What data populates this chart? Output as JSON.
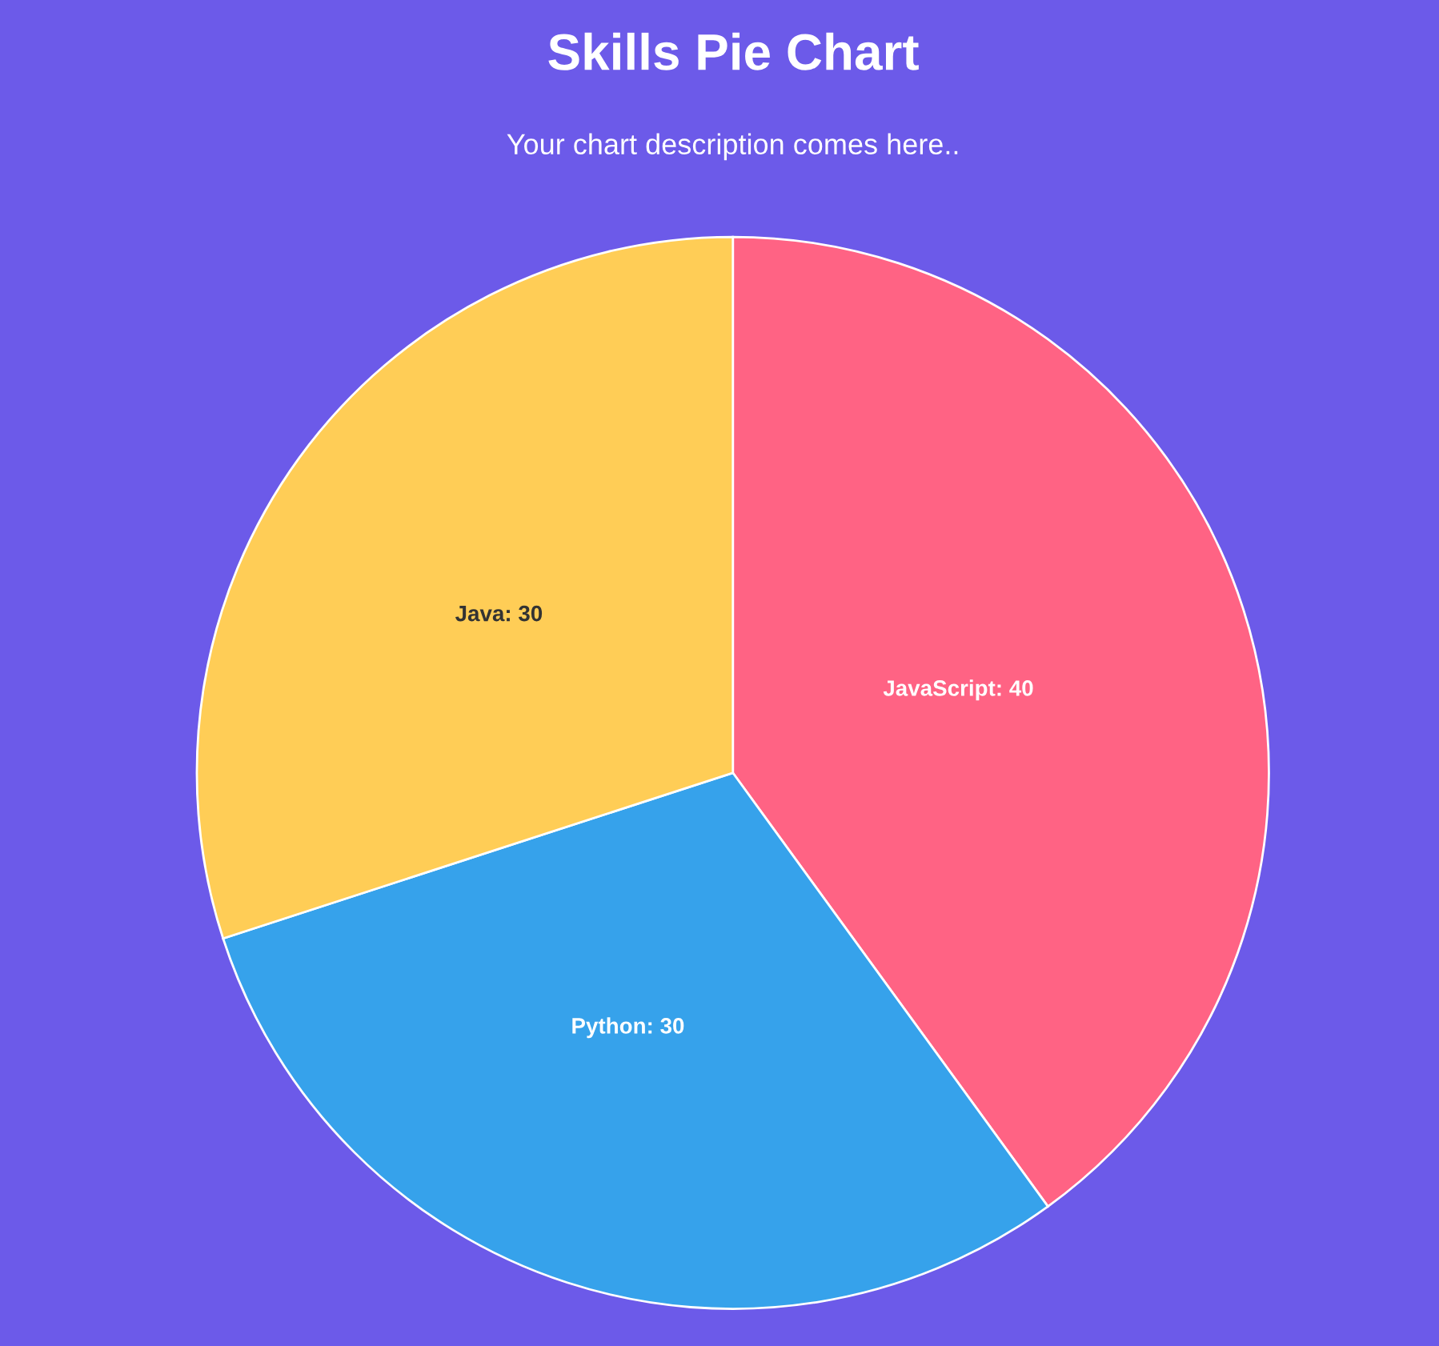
{
  "chart_data": {
    "type": "pie",
    "title": "Skills Pie Chart",
    "subtitle": "Your chart description comes here..",
    "categories": [
      "JavaScript",
      "Python",
      "Java"
    ],
    "values": [
      40,
      30,
      30
    ],
    "colors": [
      "#ff6384",
      "#36a2eb",
      "#ffcd56"
    ],
    "value_labels": [
      ": 40",
      ": 30",
      ": 30"
    ],
    "legend": false
  }
}
